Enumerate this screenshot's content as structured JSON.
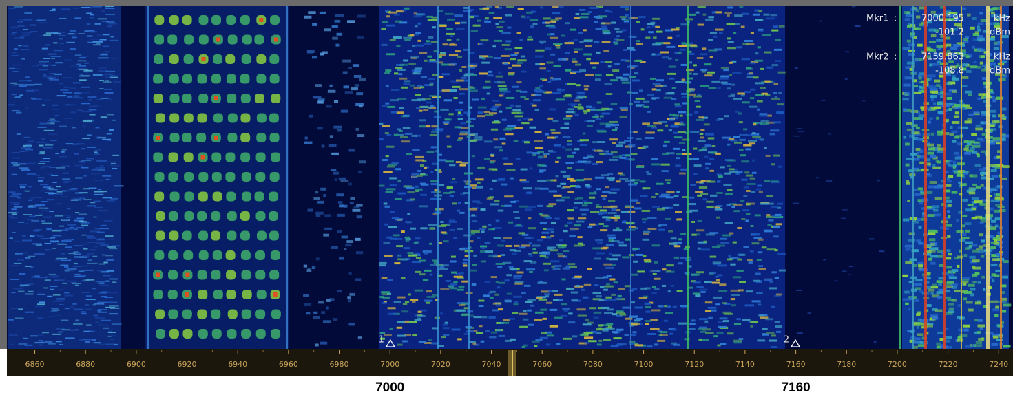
{
  "markers": [
    {
      "name": "Mkr1",
      "separator": ":",
      "id": 1,
      "frequency": 7000.195,
      "frequency_unit": "kHz",
      "level": -101.2,
      "level_unit": "dBm"
    },
    {
      "name": "Mkr2",
      "separator": ":",
      "id": 2,
      "frequency": 7159.863,
      "frequency_unit": "kHz",
      "level": -108.8,
      "level_unit": "dBm"
    }
  ],
  "frequency_axis": {
    "range": [
      6849,
      7244
    ],
    "ticks": [
      6860,
      6880,
      6900,
      6920,
      6940,
      6960,
      6980,
      7000,
      7020,
      7040,
      7060,
      7080,
      7100,
      7120,
      7140,
      7160,
      7180,
      7200,
      7220,
      7240
    ]
  },
  "footer_labels": [
    7000,
    7160
  ]
}
